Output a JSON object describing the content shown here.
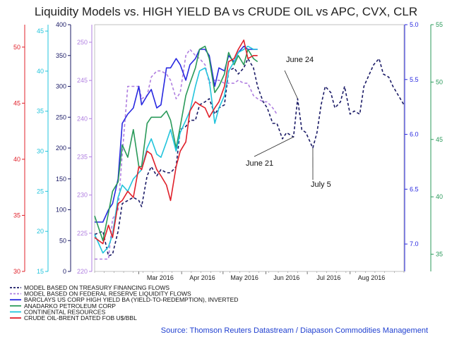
{
  "chart_data": {
    "type": "line",
    "title": "Liquidity Models vs. HIGH YIELD BA vs CRUDE OIL vs APC, CVX, CLR",
    "source": "Source: Thomson Reuters Datastream / Diapason Commodities Management",
    "x_ticks": [
      "Mar 2016",
      "Apr 2016",
      "May 2016",
      "Jun 2016",
      "Jul 2016",
      "Aug 2016"
    ],
    "x_range": [
      "2016-01-29",
      "2016-09-09"
    ],
    "axes": [
      {
        "id": "red",
        "color": "#e0202a",
        "side": "left",
        "range": [
          30,
          52
        ],
        "ticks": [
          "30",
          "35",
          "40",
          "45",
          "50"
        ]
      },
      {
        "id": "cyan",
        "color": "#22c4dc",
        "side": "left",
        "range": [
          15,
          45.8
        ],
        "ticks": [
          "15",
          "20",
          "25",
          "30",
          "35",
          "40",
          "45"
        ]
      },
      {
        "id": "navy",
        "color": "#1a1a66",
        "side": "left",
        "range": [
          0,
          400
        ],
        "ticks": [
          "0",
          "50",
          "100",
          "150",
          "200",
          "250",
          "300",
          "350",
          "400"
        ]
      },
      {
        "id": "purple",
        "color": "#b07fe0",
        "side": "left",
        "range": [
          220,
          252.3
        ],
        "ticks": [
          "220",
          "225",
          "230",
          "235",
          "240",
          "245",
          "250"
        ]
      },
      {
        "id": "blue",
        "color": "#2828e0",
        "side": "right",
        "inverted": true,
        "range": [
          5.0,
          7.25
        ],
        "ticks": [
          "5.0",
          "5.5",
          "6.0",
          "6.5",
          "7.0"
        ]
      },
      {
        "id": "green",
        "color": "#2a9a5a",
        "side": "right",
        "range": [
          33.5,
          55
        ],
        "ticks": [
          "35",
          "40",
          "45",
          "50",
          "55"
        ]
      }
    ],
    "annotations": [
      {
        "label": "June 24",
        "date": "2016-06-24",
        "axis": "navy",
        "value": 280
      },
      {
        "label": "June 21",
        "date": "2016-06-21",
        "axis": "navy",
        "value": 218
      },
      {
        "label": "July 5",
        "date": "2016-07-05",
        "axis": "navy",
        "value": 200
      }
    ],
    "series": [
      {
        "name": "MODEL BASED ON TREASURY FINANCING FLOWS",
        "color": "#1a1a66",
        "dash": "4,3",
        "axis": "navy",
        "points": [
          [
            "2016-01-29",
            60
          ],
          [
            "2016-02-04",
            65
          ],
          [
            "2016-02-08",
            25
          ],
          [
            "2016-02-11",
            28
          ],
          [
            "2016-02-15",
            65
          ],
          [
            "2016-02-18",
            110
          ],
          [
            "2016-02-22",
            115
          ],
          [
            "2016-02-26",
            120
          ],
          [
            "2016-03-01",
            115
          ],
          [
            "2016-03-03",
            105
          ],
          [
            "2016-03-07",
            155
          ],
          [
            "2016-03-10",
            170
          ],
          [
            "2016-03-14",
            155
          ],
          [
            "2016-03-17",
            165
          ],
          [
            "2016-03-21",
            160
          ],
          [
            "2016-03-24",
            160
          ],
          [
            "2016-03-28",
            170
          ],
          [
            "2016-03-31",
            230
          ],
          [
            "2016-04-04",
            235
          ],
          [
            "2016-04-07",
            245
          ],
          [
            "2016-04-11",
            245
          ],
          [
            "2016-04-14",
            270
          ],
          [
            "2016-04-18",
            275
          ],
          [
            "2016-04-21",
            280
          ],
          [
            "2016-04-25",
            255
          ],
          [
            "2016-04-28",
            265
          ],
          [
            "2016-05-02",
            270
          ],
          [
            "2016-05-05",
            325
          ],
          [
            "2016-05-09",
            330
          ],
          [
            "2016-05-12",
            320
          ],
          [
            "2016-05-16",
            330
          ],
          [
            "2016-05-19",
            345
          ],
          [
            "2016-05-23",
            330
          ],
          [
            "2016-05-26",
            300
          ],
          [
            "2016-05-30",
            275
          ],
          [
            "2016-06-02",
            265
          ],
          [
            "2016-06-06",
            240
          ],
          [
            "2016-06-09",
            240
          ],
          [
            "2016-06-13",
            215
          ],
          [
            "2016-06-16",
            225
          ],
          [
            "2016-06-21",
            218
          ],
          [
            "2016-06-24",
            280
          ],
          [
            "2016-06-27",
            230
          ],
          [
            "2016-06-30",
            225
          ],
          [
            "2016-07-05",
            200
          ],
          [
            "2016-07-08",
            225
          ],
          [
            "2016-07-11",
            270
          ],
          [
            "2016-07-14",
            300
          ],
          [
            "2016-07-18",
            290
          ],
          [
            "2016-07-21",
            265
          ],
          [
            "2016-07-25",
            275
          ],
          [
            "2016-07-28",
            300
          ],
          [
            "2016-08-01",
            255
          ],
          [
            "2016-08-04",
            260
          ],
          [
            "2016-08-08",
            255
          ],
          [
            "2016-08-11",
            300
          ],
          [
            "2016-08-15",
            320
          ],
          [
            "2016-08-18",
            335
          ],
          [
            "2016-08-22",
            345
          ],
          [
            "2016-08-25",
            320
          ],
          [
            "2016-08-29",
            315
          ],
          [
            "2016-09-01",
            300
          ],
          [
            "2016-09-05",
            285
          ],
          [
            "2016-09-09",
            270
          ]
        ]
      },
      {
        "name": "MODEL BASED ON FEDERAL RESERVE LIQUIDITY FLOWS",
        "color": "#b07fe0",
        "dash": "4,3",
        "axis": "navy",
        "points": [
          [
            "2016-01-29",
            20
          ],
          [
            "2016-02-04",
            20
          ],
          [
            "2016-02-08",
            20
          ],
          [
            "2016-02-11",
            85
          ],
          [
            "2016-02-15",
            100
          ],
          [
            "2016-02-18",
            190
          ],
          [
            "2016-02-22",
            300
          ],
          [
            "2016-02-26",
            300
          ],
          [
            "2016-03-01",
            300
          ],
          [
            "2016-03-03",
            280
          ],
          [
            "2016-03-07",
            285
          ],
          [
            "2016-03-10",
            315
          ],
          [
            "2016-03-14",
            325
          ],
          [
            "2016-03-17",
            325
          ],
          [
            "2016-03-21",
            320
          ],
          [
            "2016-03-24",
            310
          ],
          [
            "2016-03-28",
            280
          ],
          [
            "2016-03-31",
            290
          ],
          [
            "2016-04-04",
            350
          ],
          [
            "2016-04-07",
            360
          ],
          [
            "2016-04-11",
            350
          ],
          [
            "2016-04-14",
            345
          ],
          [
            "2016-04-18",
            335
          ],
          [
            "2016-04-21",
            305
          ],
          [
            "2016-04-25",
            310
          ],
          [
            "2016-04-28",
            310
          ],
          [
            "2016-05-02",
            305
          ],
          [
            "2016-05-05",
            305
          ],
          [
            "2016-05-09",
            305
          ],
          [
            "2016-05-12",
            310
          ],
          [
            "2016-05-16",
            305
          ],
          [
            "2016-05-19",
            305
          ],
          [
            "2016-05-23",
            285
          ],
          [
            "2016-05-26",
            280
          ],
          [
            "2016-05-30",
            275
          ],
          [
            "2016-06-02",
            275
          ],
          [
            "2016-06-06",
            265
          ],
          [
            "2016-06-09",
            255
          ]
        ]
      },
      {
        "name": "BARCLAYS US CORP HIGH YIELD BA (YIELD-TO-REDEMPTION), INVERTED",
        "color": "#2828e0",
        "dash": "",
        "axis": "navy",
        "points": [
          [
            "2016-01-29",
            80
          ],
          [
            "2016-02-04",
            80
          ],
          [
            "2016-02-08",
            100
          ],
          [
            "2016-02-11",
            110
          ],
          [
            "2016-02-15",
            150
          ],
          [
            "2016-02-18",
            240
          ],
          [
            "2016-02-22",
            255
          ],
          [
            "2016-02-26",
            265
          ],
          [
            "2016-03-01",
            300
          ],
          [
            "2016-03-03",
            270
          ],
          [
            "2016-03-07",
            285
          ],
          [
            "2016-03-10",
            295
          ],
          [
            "2016-03-14",
            265
          ],
          [
            "2016-03-17",
            270
          ],
          [
            "2016-03-21",
            330
          ],
          [
            "2016-03-24",
            330
          ],
          [
            "2016-03-28",
            345
          ],
          [
            "2016-03-31",
            335
          ],
          [
            "2016-04-04",
            310
          ],
          [
            "2016-04-07",
            335
          ],
          [
            "2016-04-11",
            345
          ],
          [
            "2016-04-14",
            360
          ],
          [
            "2016-04-18",
            360
          ],
          [
            "2016-04-21",
            350
          ],
          [
            "2016-04-25",
            300
          ],
          [
            "2016-04-28",
            330
          ],
          [
            "2016-05-02",
            325
          ],
          [
            "2016-05-05",
            350
          ],
          [
            "2016-05-09",
            340
          ],
          [
            "2016-05-12",
            355
          ],
          [
            "2016-05-16",
            365
          ],
          [
            "2016-05-19",
            360
          ],
          [
            "2016-05-23",
            360
          ],
          [
            "2016-05-26",
            360
          ]
        ]
      },
      {
        "name": "ANADARKO PETROLEUM CORP",
        "color": "#2a9a5a",
        "dash": "",
        "axis": "navy",
        "points": [
          [
            "2016-01-29",
            90
          ],
          [
            "2016-02-04",
            50
          ],
          [
            "2016-02-08",
            95
          ],
          [
            "2016-02-11",
            130
          ],
          [
            "2016-02-15",
            145
          ],
          [
            "2016-02-18",
            205
          ],
          [
            "2016-02-22",
            185
          ],
          [
            "2016-02-26",
            230
          ],
          [
            "2016-03-01",
            170
          ],
          [
            "2016-03-03",
            170
          ],
          [
            "2016-03-07",
            240
          ],
          [
            "2016-03-10",
            250
          ],
          [
            "2016-03-14",
            250
          ],
          [
            "2016-03-17",
            250
          ],
          [
            "2016-03-21",
            260
          ],
          [
            "2016-03-24",
            245
          ],
          [
            "2016-03-28",
            200
          ],
          [
            "2016-03-31",
            235
          ],
          [
            "2016-04-04",
            285
          ],
          [
            "2016-04-07",
            305
          ],
          [
            "2016-04-11",
            330
          ],
          [
            "2016-04-14",
            360
          ],
          [
            "2016-04-18",
            365
          ],
          [
            "2016-04-21",
            345
          ],
          [
            "2016-04-25",
            290
          ],
          [
            "2016-04-28",
            300
          ],
          [
            "2016-05-02",
            320
          ],
          [
            "2016-05-05",
            355
          ],
          [
            "2016-05-09",
            335
          ],
          [
            "2016-05-12",
            350
          ],
          [
            "2016-05-16",
            335
          ],
          [
            "2016-05-19",
            360
          ],
          [
            "2016-05-23",
            345
          ],
          [
            "2016-05-26",
            340
          ]
        ]
      },
      {
        "name": "CONTINENTAL RESOURCES",
        "color": "#22c4dc",
        "dash": "",
        "axis": "navy",
        "points": [
          [
            "2016-01-29",
            60
          ],
          [
            "2016-02-04",
            30
          ],
          [
            "2016-02-08",
            40
          ],
          [
            "2016-02-11",
            60
          ],
          [
            "2016-02-15",
            120
          ],
          [
            "2016-02-18",
            140
          ],
          [
            "2016-02-22",
            130
          ],
          [
            "2016-02-26",
            150
          ],
          [
            "2016-03-01",
            160
          ],
          [
            "2016-03-03",
            165
          ],
          [
            "2016-03-07",
            200
          ],
          [
            "2016-03-10",
            215
          ],
          [
            "2016-03-14",
            190
          ],
          [
            "2016-03-17",
            185
          ],
          [
            "2016-03-21",
            210
          ],
          [
            "2016-03-24",
            230
          ],
          [
            "2016-03-28",
            195
          ],
          [
            "2016-03-31",
            225
          ],
          [
            "2016-04-04",
            245
          ],
          [
            "2016-04-07",
            260
          ],
          [
            "2016-04-11",
            300
          ],
          [
            "2016-04-14",
            325
          ],
          [
            "2016-04-18",
            330
          ],
          [
            "2016-04-21",
            310
          ],
          [
            "2016-04-25",
            240
          ],
          [
            "2016-04-28",
            265
          ],
          [
            "2016-05-02",
            285
          ],
          [
            "2016-05-05",
            325
          ],
          [
            "2016-05-09",
            340
          ],
          [
            "2016-05-12",
            355
          ],
          [
            "2016-05-16",
            360
          ],
          [
            "2016-05-19",
            365
          ],
          [
            "2016-05-23",
            360
          ],
          [
            "2016-05-26",
            360
          ]
        ]
      },
      {
        "name": "CRUDE OIL-BRENT DATED FOB U$/BBL",
        "color": "#e0202a",
        "dash": "",
        "axis": "navy",
        "points": [
          [
            "2016-01-29",
            55
          ],
          [
            "2016-02-04",
            45
          ],
          [
            "2016-02-08",
            75
          ],
          [
            "2016-02-11",
            55
          ],
          [
            "2016-02-15",
            110
          ],
          [
            "2016-02-18",
            115
          ],
          [
            "2016-02-22",
            130
          ],
          [
            "2016-02-26",
            120
          ],
          [
            "2016-03-01",
            170
          ],
          [
            "2016-03-03",
            165
          ],
          [
            "2016-03-07",
            195
          ],
          [
            "2016-03-10",
            190
          ],
          [
            "2016-03-14",
            165
          ],
          [
            "2016-03-17",
            155
          ],
          [
            "2016-03-21",
            140
          ],
          [
            "2016-03-24",
            115
          ],
          [
            "2016-03-28",
            170
          ],
          [
            "2016-03-31",
            195
          ],
          [
            "2016-04-04",
            210
          ],
          [
            "2016-04-07",
            260
          ],
          [
            "2016-04-11",
            275
          ],
          [
            "2016-04-14",
            270
          ],
          [
            "2016-04-18",
            265
          ],
          [
            "2016-04-21",
            250
          ],
          [
            "2016-04-25",
            265
          ],
          [
            "2016-04-28",
            275
          ],
          [
            "2016-05-02",
            300
          ],
          [
            "2016-05-05",
            340
          ],
          [
            "2016-05-09",
            345
          ],
          [
            "2016-05-12",
            360
          ],
          [
            "2016-05-16",
            375
          ],
          [
            "2016-05-19",
            345
          ],
          [
            "2016-05-23",
            350
          ],
          [
            "2016-05-26",
            350
          ]
        ]
      }
    ]
  }
}
